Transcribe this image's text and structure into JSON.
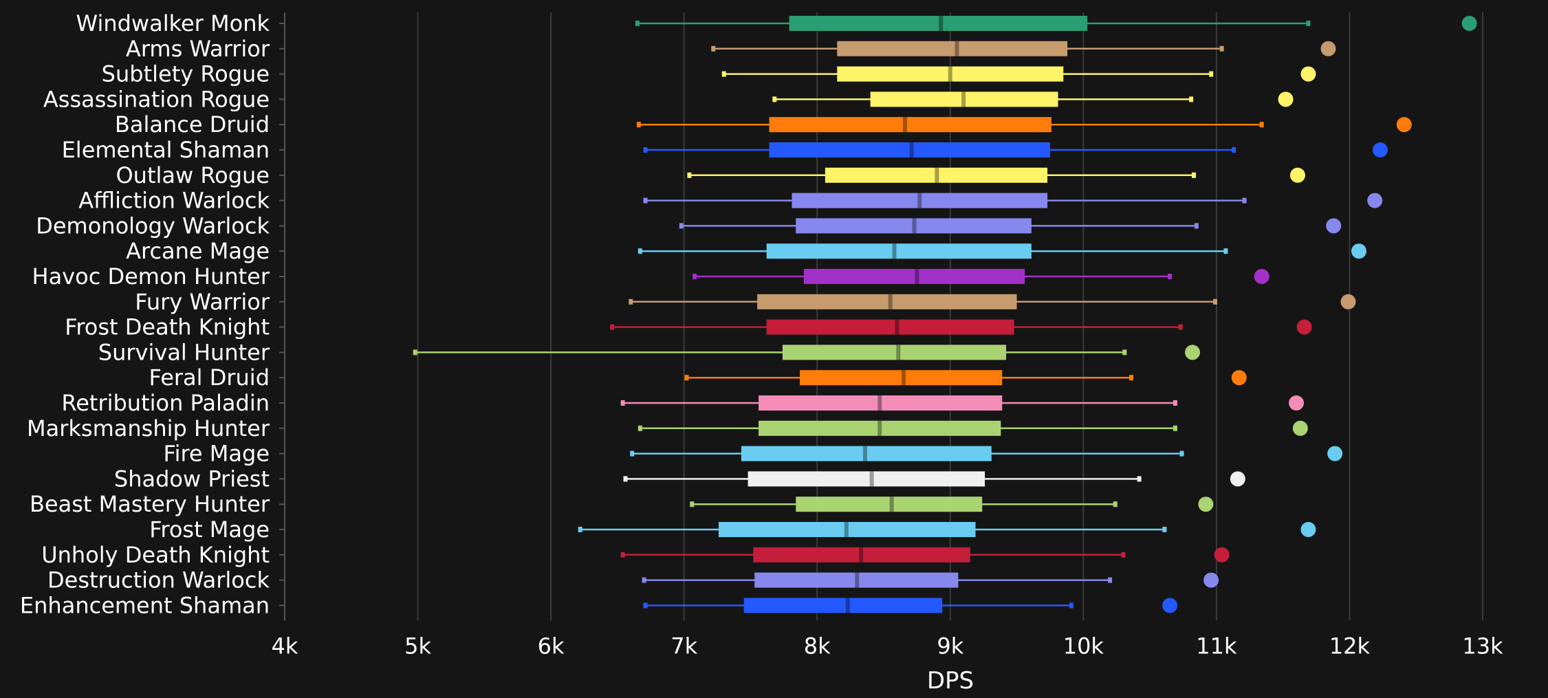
{
  "chart_data": {
    "type": "boxplot",
    "xlabel": "DPS",
    "xlim": [
      4000,
      13000
    ],
    "x_ticks": [
      4000,
      5000,
      6000,
      7000,
      8000,
      9000,
      10000,
      11000,
      12000,
      13000
    ],
    "x_tick_labels": [
      "4k",
      "5k",
      "6k",
      "7k",
      "8k",
      "9k",
      "10k",
      "11k",
      "12k",
      "13k"
    ],
    "grid": "vertical",
    "series": [
      {
        "name": "Windwalker Monk",
        "color": "#2a9d74",
        "min": 6650,
        "q1": 7790,
        "median": 8930,
        "q3": 10030,
        "max": 11690,
        "max_point": 12900
      },
      {
        "name": "Arms Warrior",
        "color": "#c69b6d",
        "min": 7220,
        "q1": 8150,
        "median": 9050,
        "q3": 9880,
        "max": 11040,
        "max_point": 11840
      },
      {
        "name": "Subtlety Rogue",
        "color": "#fff468",
        "min": 7300,
        "q1": 8150,
        "median": 9000,
        "q3": 9850,
        "max": 10960,
        "max_point": 11690
      },
      {
        "name": "Assassination Rogue",
        "color": "#fff468",
        "min": 7680,
        "q1": 8400,
        "median": 9100,
        "q3": 9810,
        "max": 10810,
        "max_point": 11520
      },
      {
        "name": "Balance Druid",
        "color": "#ff7c0a",
        "min": 6660,
        "q1": 7640,
        "median": 8660,
        "q3": 9760,
        "max": 11340,
        "max_point": 12410
      },
      {
        "name": "Elemental Shaman",
        "color": "#2359ff",
        "min": 6710,
        "q1": 7640,
        "median": 8710,
        "q3": 9750,
        "max": 11130,
        "max_point": 12230
      },
      {
        "name": "Outlaw Rogue",
        "color": "#fff468",
        "min": 7040,
        "q1": 8060,
        "median": 8900,
        "q3": 9730,
        "max": 10830,
        "max_point": 11610
      },
      {
        "name": "Affliction Warlock",
        "color": "#8788ee",
        "min": 6710,
        "q1": 7810,
        "median": 8770,
        "q3": 9730,
        "max": 11210,
        "max_point": 12190
      },
      {
        "name": "Demonology Warlock",
        "color": "#8788ee",
        "min": 6980,
        "q1": 7840,
        "median": 8730,
        "q3": 9610,
        "max": 10850,
        "max_point": 11880
      },
      {
        "name": "Arcane Mage",
        "color": "#69ccf0",
        "min": 6670,
        "q1": 7620,
        "median": 8580,
        "q3": 9610,
        "max": 11070,
        "max_point": 12070
      },
      {
        "name": "Havoc Demon Hunter",
        "color": "#a330c9",
        "min": 7080,
        "q1": 7900,
        "median": 8750,
        "q3": 9560,
        "max": 10650,
        "max_point": 11340
      },
      {
        "name": "Fury Warrior",
        "color": "#c69b6d",
        "min": 6600,
        "q1": 7550,
        "median": 8550,
        "q3": 9500,
        "max": 10990,
        "max_point": 11990
      },
      {
        "name": "Frost Death Knight",
        "color": "#c41e3a",
        "min": 6460,
        "q1": 7620,
        "median": 8600,
        "q3": 9480,
        "max": 10730,
        "max_point": 11660
      },
      {
        "name": "Survival Hunter",
        "color": "#aad372",
        "min": 4980,
        "q1": 7740,
        "median": 8610,
        "q3": 9420,
        "max": 10310,
        "max_point": 10820
      },
      {
        "name": "Feral Druid",
        "color": "#ff7c0a",
        "min": 7020,
        "q1": 7870,
        "median": 8650,
        "q3": 9390,
        "max": 10360,
        "max_point": 11170
      },
      {
        "name": "Retribution Paladin",
        "color": "#f48cba",
        "min": 6540,
        "q1": 7560,
        "median": 8470,
        "q3": 9390,
        "max": 10690,
        "max_point": 11600
      },
      {
        "name": "Marksmanship Hunter",
        "color": "#aad372",
        "min": 6670,
        "q1": 7560,
        "median": 8470,
        "q3": 9380,
        "max": 10690,
        "max_point": 11630
      },
      {
        "name": "Fire Mage",
        "color": "#69ccf0",
        "min": 6610,
        "q1": 7430,
        "median": 8360,
        "q3": 9310,
        "max": 10740,
        "max_point": 11890
      },
      {
        "name": "Shadow Priest",
        "color": "#f0f0f0",
        "min": 6560,
        "q1": 7480,
        "median": 8410,
        "q3": 9260,
        "max": 10420,
        "max_point": 11160
      },
      {
        "name": "Beast Mastery Hunter",
        "color": "#aad372",
        "min": 7060,
        "q1": 7840,
        "median": 8560,
        "q3": 9240,
        "max": 10240,
        "max_point": 10920
      },
      {
        "name": "Frost Mage",
        "color": "#69ccf0",
        "min": 6220,
        "q1": 7260,
        "median": 8220,
        "q3": 9190,
        "max": 10610,
        "max_point": 11690
      },
      {
        "name": "Unholy Death Knight",
        "color": "#c41e3a",
        "min": 6540,
        "q1": 7520,
        "median": 8330,
        "q3": 9150,
        "max": 10300,
        "max_point": 11040
      },
      {
        "name": "Destruction Warlock",
        "color": "#8788ee",
        "min": 6700,
        "q1": 7530,
        "median": 8300,
        "q3": 9060,
        "max": 10200,
        "max_point": 10960
      },
      {
        "name": "Enhancement Shaman",
        "color": "#2359ff",
        "min": 6710,
        "q1": 7450,
        "median": 8230,
        "q3": 8940,
        "max": 9910,
        "max_point": 10650
      }
    ]
  }
}
